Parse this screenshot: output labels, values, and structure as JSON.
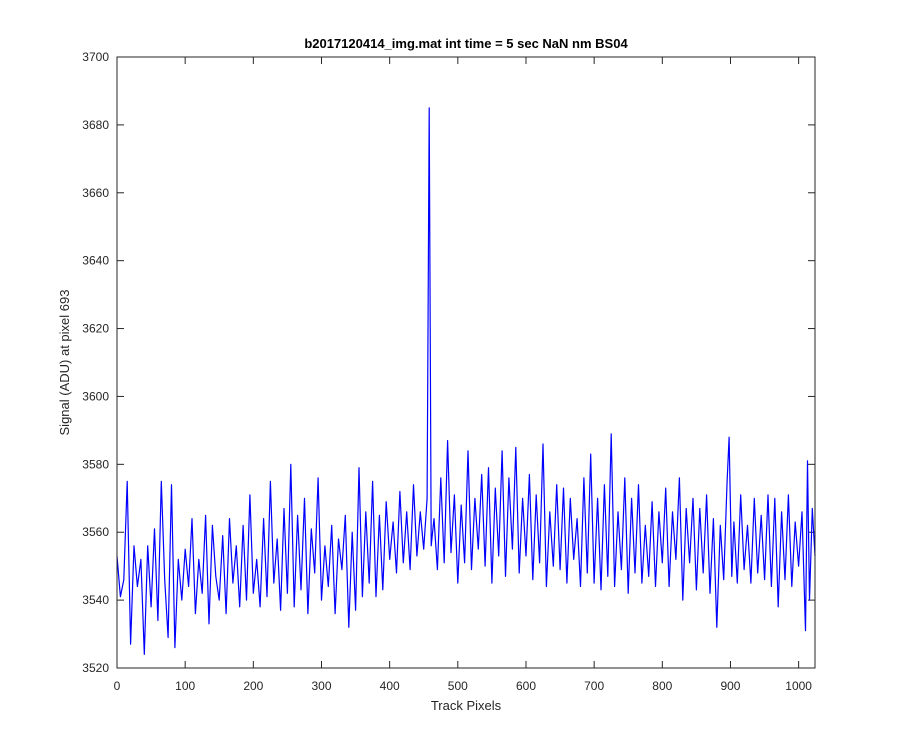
{
  "chart_data": {
    "type": "line",
    "title": "b2017120414_img.mat int time = 5 sec  NaN nm BS04",
    "xlabel": "Track Pixels",
    "ylabel": "Signal (ADU) at pixel 693",
    "xlim": [
      0,
      1024
    ],
    "ylim": [
      3520,
      3700
    ],
    "xticks": [
      0,
      100,
      200,
      300,
      400,
      500,
      600,
      700,
      800,
      900,
      1000
    ],
    "yticks": [
      3520,
      3540,
      3560,
      3580,
      3600,
      3620,
      3640,
      3660,
      3680,
      3700
    ],
    "grid": false,
    "series": [
      {
        "color": "#0000ff",
        "points": [
          [
            0,
            3553
          ],
          [
            5,
            3541
          ],
          [
            10,
            3546
          ],
          [
            15,
            3575
          ],
          [
            20,
            3527
          ],
          [
            25,
            3556
          ],
          [
            30,
            3544
          ],
          [
            35,
            3552
          ],
          [
            40,
            3524
          ],
          [
            45,
            3556
          ],
          [
            50,
            3538
          ],
          [
            55,
            3561
          ],
          [
            60,
            3534
          ],
          [
            65,
            3575
          ],
          [
            70,
            3546
          ],
          [
            75,
            3529
          ],
          [
            80,
            3574
          ],
          [
            85,
            3526
          ],
          [
            90,
            3552
          ],
          [
            95,
            3540
          ],
          [
            100,
            3555
          ],
          [
            105,
            3544
          ],
          [
            110,
            3564
          ],
          [
            115,
            3536
          ],
          [
            120,
            3552
          ],
          [
            125,
            3542
          ],
          [
            130,
            3565
          ],
          [
            135,
            3533
          ],
          [
            140,
            3562
          ],
          [
            145,
            3547
          ],
          [
            150,
            3540
          ],
          [
            155,
            3559
          ],
          [
            160,
            3536
          ],
          [
            165,
            3564
          ],
          [
            170,
            3545
          ],
          [
            175,
            3556
          ],
          [
            180,
            3538
          ],
          [
            185,
            3562
          ],
          [
            190,
            3540
          ],
          [
            195,
            3571
          ],
          [
            200,
            3542
          ],
          [
            205,
            3552
          ],
          [
            210,
            3538
          ],
          [
            215,
            3564
          ],
          [
            220,
            3541
          ],
          [
            225,
            3575
          ],
          [
            230,
            3545
          ],
          [
            235,
            3558
          ],
          [
            240,
            3537
          ],
          [
            245,
            3567
          ],
          [
            250,
            3542
          ],
          [
            255,
            3580
          ],
          [
            260,
            3538
          ],
          [
            265,
            3565
          ],
          [
            270,
            3543
          ],
          [
            275,
            3570
          ],
          [
            280,
            3536
          ],
          [
            285,
            3561
          ],
          [
            290,
            3548
          ],
          [
            295,
            3576
          ],
          [
            300,
            3540
          ],
          [
            305,
            3556
          ],
          [
            310,
            3544
          ],
          [
            315,
            3562
          ],
          [
            320,
            3536
          ],
          [
            325,
            3558
          ],
          [
            330,
            3549
          ],
          [
            335,
            3565
          ],
          [
            340,
            3532
          ],
          [
            345,
            3560
          ],
          [
            350,
            3537
          ],
          [
            355,
            3579
          ],
          [
            360,
            3541
          ],
          [
            365,
            3566
          ],
          [
            370,
            3545
          ],
          [
            375,
            3575
          ],
          [
            380,
            3541
          ],
          [
            385,
            3565
          ],
          [
            390,
            3543
          ],
          [
            395,
            3569
          ],
          [
            400,
            3552
          ],
          [
            405,
            3563
          ],
          [
            410,
            3548
          ],
          [
            415,
            3572
          ],
          [
            420,
            3551
          ],
          [
            425,
            3566
          ],
          [
            430,
            3549
          ],
          [
            435,
            3574
          ],
          [
            440,
            3553
          ],
          [
            445,
            3566
          ],
          [
            450,
            3555
          ],
          [
            455,
            3570
          ],
          [
            458,
            3685
          ],
          [
            461,
            3556
          ],
          [
            465,
            3564
          ],
          [
            470,
            3549
          ],
          [
            475,
            3576
          ],
          [
            480,
            3551
          ],
          [
            485,
            3587
          ],
          [
            490,
            3554
          ],
          [
            495,
            3571
          ],
          [
            500,
            3545
          ],
          [
            505,
            3568
          ],
          [
            510,
            3551
          ],
          [
            515,
            3584
          ],
          [
            520,
            3549
          ],
          [
            525,
            3570
          ],
          [
            530,
            3555
          ],
          [
            535,
            3577
          ],
          [
            540,
            3550
          ],
          [
            545,
            3579
          ],
          [
            550,
            3545
          ],
          [
            555,
            3573
          ],
          [
            560,
            3553
          ],
          [
            565,
            3584
          ],
          [
            570,
            3547
          ],
          [
            575,
            3576
          ],
          [
            580,
            3555
          ],
          [
            585,
            3585
          ],
          [
            590,
            3548
          ],
          [
            595,
            3570
          ],
          [
            600,
            3553
          ],
          [
            605,
            3577
          ],
          [
            610,
            3546
          ],
          [
            615,
            3571
          ],
          [
            620,
            3551
          ],
          [
            625,
            3586
          ],
          [
            630,
            3544
          ],
          [
            635,
            3566
          ],
          [
            640,
            3550
          ],
          [
            645,
            3574
          ],
          [
            650,
            3549
          ],
          [
            655,
            3573
          ],
          [
            660,
            3545
          ],
          [
            665,
            3570
          ],
          [
            670,
            3552
          ],
          [
            675,
            3564
          ],
          [
            680,
            3544
          ],
          [
            685,
            3576
          ],
          [
            690,
            3548
          ],
          [
            695,
            3583
          ],
          [
            700,
            3545
          ],
          [
            705,
            3570
          ],
          [
            710,
            3543
          ],
          [
            715,
            3574
          ],
          [
            720,
            3547
          ],
          [
            725,
            3589
          ],
          [
            730,
            3544
          ],
          [
            735,
            3566
          ],
          [
            740,
            3549
          ],
          [
            745,
            3576
          ],
          [
            750,
            3542
          ],
          [
            755,
            3570
          ],
          [
            760,
            3548
          ],
          [
            765,
            3574
          ],
          [
            770,
            3545
          ],
          [
            775,
            3562
          ],
          [
            780,
            3547
          ],
          [
            785,
            3569
          ],
          [
            790,
            3544
          ],
          [
            795,
            3566
          ],
          [
            800,
            3551
          ],
          [
            805,
            3573
          ],
          [
            810,
            3544
          ],
          [
            815,
            3566
          ],
          [
            820,
            3552
          ],
          [
            825,
            3576
          ],
          [
            830,
            3540
          ],
          [
            835,
            3567
          ],
          [
            840,
            3551
          ],
          [
            845,
            3570
          ],
          [
            850,
            3543
          ],
          [
            855,
            3567
          ],
          [
            860,
            3548
          ],
          [
            865,
            3571
          ],
          [
            870,
            3542
          ],
          [
            875,
            3564
          ],
          [
            880,
            3532
          ],
          [
            885,
            3562
          ],
          [
            890,
            3546
          ],
          [
            895,
            3575
          ],
          [
            898,
            3588
          ],
          [
            902,
            3547
          ],
          [
            905,
            3563
          ],
          [
            910,
            3545
          ],
          [
            915,
            3571
          ],
          [
            920,
            3549
          ],
          [
            925,
            3562
          ],
          [
            930,
            3545
          ],
          [
            935,
            3570
          ],
          [
            940,
            3548
          ],
          [
            945,
            3565
          ],
          [
            950,
            3546
          ],
          [
            955,
            3571
          ],
          [
            960,
            3544
          ],
          [
            965,
            3570
          ],
          [
            970,
            3538
          ],
          [
            975,
            3566
          ],
          [
            980,
            3546
          ],
          [
            985,
            3571
          ],
          [
            990,
            3544
          ],
          [
            995,
            3563
          ],
          [
            1000,
            3550
          ],
          [
            1005,
            3566
          ],
          [
            1010,
            3531
          ],
          [
            1013,
            3581
          ],
          [
            1016,
            3540
          ],
          [
            1020,
            3567
          ],
          [
            1024,
            3553
          ]
        ]
      }
    ]
  }
}
